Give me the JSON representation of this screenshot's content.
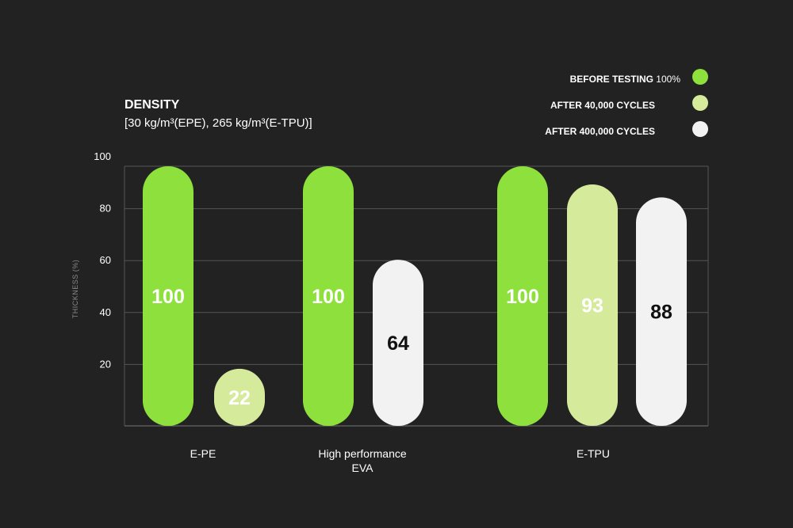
{
  "chart_data": {
    "type": "bar",
    "title": "DENSITY",
    "subtitle": "[30 kg/m³(EPE), 265 kg/m³(E-TPU)]",
    "ylabel": "THICKNESS (%)",
    "yticks": [
      20,
      40,
      60,
      80,
      100
    ],
    "ylim": [
      0,
      100
    ],
    "grid": true,
    "legend_position": "top-right",
    "legend": [
      {
        "label": "BEFORE TESTING",
        "suffix": "100%",
        "color": "#8ee03c"
      },
      {
        "label": "AFTER 40,000 CYCLES",
        "suffix": "",
        "color": "#d6ea9c"
      },
      {
        "label": "AFTER 400,000 CYCLES",
        "suffix": "",
        "color": "#f2f2f2"
      }
    ],
    "categories": [
      {
        "lines": [
          "E-PE"
        ],
        "bars": [
          {
            "value": 100,
            "series": 0,
            "label": "100"
          },
          {
            "value": 22,
            "series": 1,
            "label": "22"
          }
        ]
      },
      {
        "lines": [
          "High performance",
          "EVA"
        ],
        "bars": [
          {
            "value": 100,
            "series": 0,
            "label": "100"
          },
          {
            "value": 64,
            "series": 2,
            "label": "64"
          }
        ]
      },
      {
        "lines": [
          "E-TPU"
        ],
        "bars": [
          {
            "value": 100,
            "series": 0,
            "label": "100"
          },
          {
            "value": 93,
            "series": 1,
            "label": "93"
          },
          {
            "value": 88,
            "series": 2,
            "label": "88"
          }
        ]
      }
    ],
    "label_colors": [
      "#ffffff",
      "#ffffff",
      "#111111"
    ]
  }
}
